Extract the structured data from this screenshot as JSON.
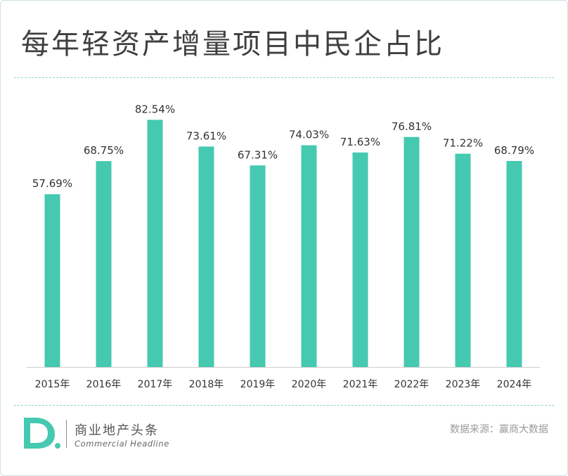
{
  "title": "每年轻资产增量项目中民企占比",
  "colors": {
    "bar": "#45c9b1",
    "accent": "#45c9b1",
    "axis": "#cccccc",
    "text": "#333333"
  },
  "chart_data": {
    "type": "bar",
    "title": "每年轻资产增量项目中民企占比",
    "categories": [
      "2015年",
      "2016年",
      "2017年",
      "2018年",
      "2019年",
      "2020年",
      "2021年",
      "2022年",
      "2023年",
      "2024年"
    ],
    "values": [
      57.69,
      68.75,
      82.54,
      73.61,
      67.31,
      74.03,
      71.63,
      76.81,
      71.22,
      68.79
    ],
    "data_labels": [
      "57.69%",
      "68.75%",
      "82.54%",
      "73.61%",
      "67.31%",
      "74.03%",
      "71.63%",
      "76.81%",
      "71.22%",
      "68.79%"
    ],
    "unit": "%",
    "ylim": [
      0,
      100
    ],
    "grid": false,
    "legend": "none",
    "xlabel": "",
    "ylabel": ""
  },
  "footer": {
    "brand_cn": "商业地产头条",
    "brand_en": "Commercial Headline",
    "source": "数据来源：赢商大数据",
    "logo_icon": "d-letter-logo-icon"
  }
}
